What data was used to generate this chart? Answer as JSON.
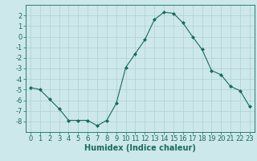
{
  "x": [
    0,
    1,
    2,
    3,
    4,
    5,
    6,
    7,
    8,
    9,
    10,
    11,
    12,
    13,
    14,
    15,
    16,
    17,
    18,
    19,
    20,
    21,
    22,
    23
  ],
  "y": [
    -4.8,
    -5.0,
    -5.9,
    -6.8,
    -7.9,
    -7.9,
    -7.9,
    -8.4,
    -7.9,
    -6.3,
    -2.9,
    -1.6,
    -0.3,
    1.6,
    2.3,
    2.2,
    1.3,
    0.0,
    -1.2,
    -3.2,
    -3.6,
    -4.7,
    -5.1,
    -6.6
  ],
  "line_color": "#1a6b5a",
  "marker": "D",
  "marker_size": 2,
  "bg_color": "#cce8ea",
  "grid_color": "#b0d0d3",
  "xlabel": "Humidex (Indice chaleur)",
  "ylim": [
    -9,
    3
  ],
  "xlim": [
    -0.5,
    23.5
  ],
  "yticks": [
    -8,
    -7,
    -6,
    -5,
    -4,
    -3,
    -2,
    -1,
    0,
    1,
    2
  ],
  "xticks": [
    0,
    1,
    2,
    3,
    4,
    5,
    6,
    7,
    8,
    9,
    10,
    11,
    12,
    13,
    14,
    15,
    16,
    17,
    18,
    19,
    20,
    21,
    22,
    23
  ],
  "title_color": "#1a6b5a",
  "label_fontsize": 7,
  "tick_fontsize": 6
}
